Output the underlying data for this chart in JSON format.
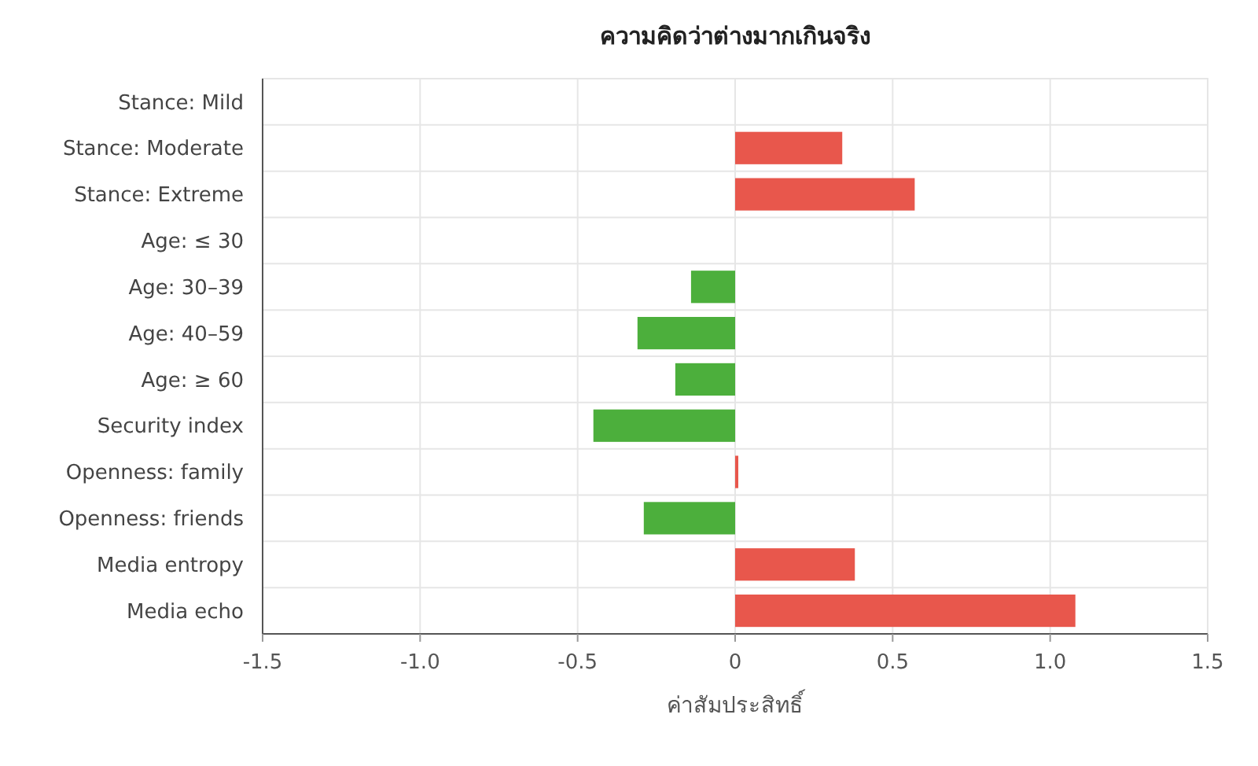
{
  "chart_data": {
    "type": "bar",
    "orientation": "horizontal",
    "title": "ความคิดว่าต่างมากเกินจริง",
    "xlabel": "ค่าสัมประสิทธิ์",
    "categories": [
      "Stance: Mild",
      "Stance: Moderate",
      "Stance: Extreme",
      "Age: ≤ 30",
      "Age: 30–39",
      "Age: 40–59",
      "Age: ≥ 60",
      "Security index",
      "Openness: family",
      "Openness: friends",
      "Media entropy",
      "Media echo"
    ],
    "values": [
      null,
      0.34,
      0.57,
      null,
      -0.14,
      -0.31,
      -0.19,
      -0.45,
      0.01,
      -0.29,
      0.38,
      1.08
    ],
    "colors": [
      null,
      "#e8574c",
      "#e8574c",
      null,
      "#4caf3c",
      "#4caf3c",
      "#4caf3c",
      "#4caf3c",
      "#e8574c",
      "#4caf3c",
      "#e8574c",
      "#e8574c"
    ],
    "xlim": [
      -1.5,
      1.5
    ],
    "xticks": [
      -1.5,
      {
        "value": -1,
        "label": "-1.0"
      },
      -0.5,
      0,
      0.5,
      {
        "value": 1,
        "label": "1.0"
      },
      1.5
    ],
    "grid": true
  }
}
